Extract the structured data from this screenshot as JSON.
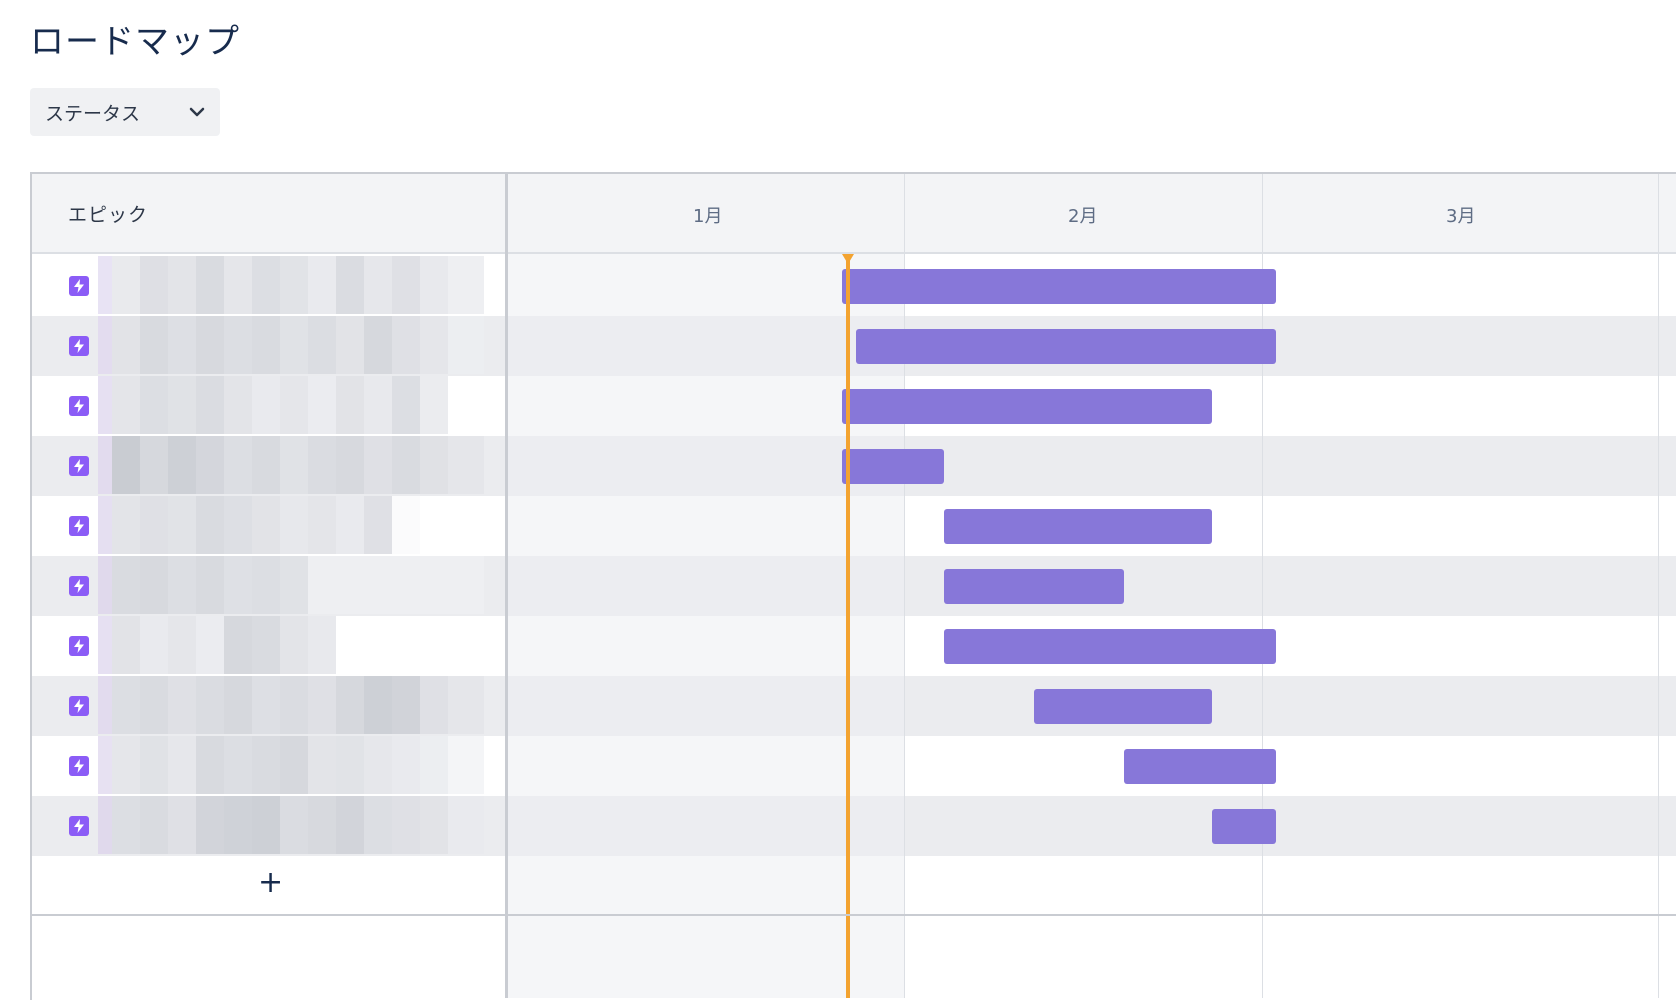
{
  "page": {
    "title": "ロードマップ"
  },
  "filter": {
    "status_label": "ステータス"
  },
  "table": {
    "epic_header": "エピック",
    "months": [
      "1月",
      "2月",
      "3月"
    ],
    "add_label": "+"
  },
  "colors": {
    "epic_bar": "#8777d9",
    "epic_icon": "#8b5cf6",
    "today_line": "#f3a330"
  }
}
